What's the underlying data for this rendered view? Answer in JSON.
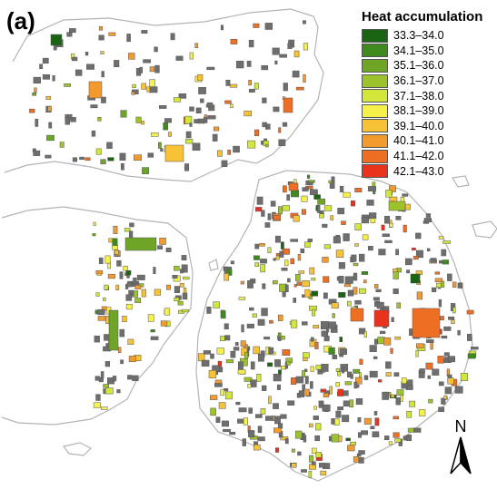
{
  "panel_label": "(a)",
  "legend": {
    "title": "Heat accumulation",
    "classes": [
      {
        "label": "33.3–34.0",
        "color": "#1a6414"
      },
      {
        "label": "34.1–35.0",
        "color": "#3f8a1e"
      },
      {
        "label": "35.1–36.0",
        "color": "#6fa526"
      },
      {
        "label": "36.1–37.0",
        "color": "#9cc22c"
      },
      {
        "label": "37.1–38.0",
        "color": "#d2e63a"
      },
      {
        "label": "38.1–39.0",
        "color": "#f5f04a"
      },
      {
        "label": "39.1–40.0",
        "color": "#f7c236"
      },
      {
        "label": "40.1–41.0",
        "color": "#f29a2e"
      },
      {
        "label": "41.1–42.0",
        "color": "#ee6e23"
      },
      {
        "label": "42.1–43.0",
        "color": "#e8341c"
      }
    ]
  },
  "north_arrow": {
    "label": "N",
    "icon": "north-arrow-icon"
  },
  "colors": {
    "no_data_parcel": "#6e6e6e",
    "outline": "#b4b4b4",
    "parcel_stroke": "#555555"
  }
}
